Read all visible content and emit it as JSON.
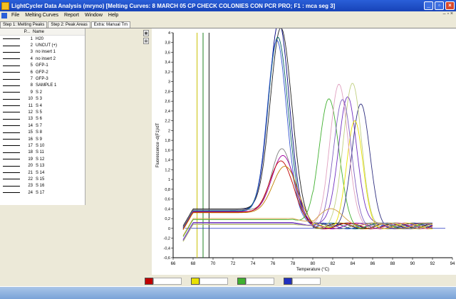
{
  "window": {
    "title": "LightCycler Data Analysis (mryno)    [Melting Curves: 8 MARCH 05 CP CHECK COLONIES CON PCR PRO; F1 : mca seg 3]"
  },
  "menu": {
    "items": [
      "File",
      "Melting Curves",
      "Report",
      "Window",
      "Help"
    ],
    "right_controls": "– ▫ ×"
  },
  "tabs": [
    "Step 1: Melting Peaks",
    "Step 2: Peak Areas",
    "Extra: Manual Tm"
  ],
  "sample_list": {
    "headers": {
      "pos": "P...",
      "name": "Name"
    },
    "rows": [
      {
        "pos": "1",
        "name": "H20",
        "color": "#000000"
      },
      {
        "pos": "2",
        "name": "UNCUT (+)",
        "color": "#000000"
      },
      {
        "pos": "3",
        "name": "no insert 1",
        "color": "#000000"
      },
      {
        "pos": "4",
        "name": "no insert 2",
        "color": "#000000"
      },
      {
        "pos": "5",
        "name": "GFP-1",
        "color": "#000000"
      },
      {
        "pos": "6",
        "name": "GFP-2",
        "color": "#000000"
      },
      {
        "pos": "7",
        "name": "GFP-3",
        "color": "#000000"
      },
      {
        "pos": "8",
        "name": "SAMPLE 1",
        "color": "#000000"
      },
      {
        "pos": "9",
        "name": "S 2",
        "color": "#000000"
      },
      {
        "pos": "10",
        "name": "S 3",
        "color": "#000000"
      },
      {
        "pos": "11",
        "name": "S 4",
        "color": "#000000"
      },
      {
        "pos": "12",
        "name": "S 5",
        "color": "#000000"
      },
      {
        "pos": "13",
        "name": "S 6",
        "color": "#000000"
      },
      {
        "pos": "14",
        "name": "S 7",
        "color": "#000000"
      },
      {
        "pos": "15",
        "name": "S 8",
        "color": "#000000"
      },
      {
        "pos": "16",
        "name": "S 9",
        "color": "#000000"
      },
      {
        "pos": "17",
        "name": "S 10",
        "color": "#000000"
      },
      {
        "pos": "18",
        "name": "S 11",
        "color": "#000000"
      },
      {
        "pos": "19",
        "name": "S 12",
        "color": "#000000"
      },
      {
        "pos": "20",
        "name": "S 13",
        "color": "#000000"
      },
      {
        "pos": "21",
        "name": "S 14",
        "color": "#000000"
      },
      {
        "pos": "22",
        "name": "S 15",
        "color": "#000000"
      },
      {
        "pos": "23",
        "name": "S 16",
        "color": "#000000"
      },
      {
        "pos": "24",
        "name": "S 17",
        "color": "#000000"
      }
    ]
  },
  "color_legend": [
    {
      "color": "#c00000",
      "value": ""
    },
    {
      "color": "#e8e000",
      "value": ""
    },
    {
      "color": "#40b030",
      "value": ""
    },
    {
      "color": "#2030c0",
      "value": ""
    }
  ],
  "chart_data": {
    "type": "line",
    "xlabel": "Temperature (°C)",
    "ylabel": "Fluorescence -d(F1)/dT",
    "xlim": [
      66,
      94
    ],
    "ylim": [
      -0.6,
      4.0
    ],
    "xticks": [
      "66",
      "68",
      "70",
      "72",
      "74",
      "76",
      "78",
      "80",
      "82",
      "84",
      "86",
      "88",
      "90",
      "92",
      "94"
    ],
    "yticks": [
      "-0,6",
      "-0,4",
      "-0,2",
      "0",
      "0,2",
      "0,4",
      "0,6",
      "0,8",
      "1",
      "1,2",
      "1,4",
      "1,6",
      "1,8",
      "2",
      "2,2",
      "2,4",
      "2,6",
      "2,8",
      "3",
      "3,2",
      "3,4",
      "3,6",
      "3,8",
      "4"
    ],
    "vertical_markers": [
      {
        "x": 68.4,
        "color": "#c8c000"
      },
      {
        "x": 69.0,
        "color": "#208020"
      },
      {
        "x": 69.6,
        "color": "#202020"
      }
    ],
    "baseline": {
      "y": 0.0,
      "color": "#2030c0"
    },
    "series": [
      {
        "color": "#000080",
        "peaks": [
          {
            "x": 76.6,
            "h": 3.85,
            "w": 1.0
          }
        ],
        "base": 0.38
      },
      {
        "color": "#202020",
        "peaks": [
          {
            "x": 76.8,
            "h": 3.7,
            "w": 1.05
          }
        ],
        "base": 0.4
      },
      {
        "color": "#006060",
        "peaks": [
          {
            "x": 76.5,
            "h": 3.55,
            "w": 1.0
          }
        ],
        "base": 0.36
      },
      {
        "color": "#3050d0",
        "peaks": [
          {
            "x": 76.4,
            "h": 3.5,
            "w": 0.95
          }
        ],
        "base": 0.35
      },
      {
        "color": "#808080",
        "peaks": [
          {
            "x": 76.9,
            "h": 1.25,
            "w": 1.0
          }
        ],
        "base": 0.38
      },
      {
        "color": "#a000a0",
        "peaks": [
          {
            "x": 77.0,
            "h": 1.15,
            "w": 1.1
          }
        ],
        "base": 0.34
      },
      {
        "color": "#c00000",
        "peaks": [
          {
            "x": 76.8,
            "h": 1.05,
            "w": 1.1
          }
        ],
        "base": 0.33
      },
      {
        "color": "#c08000",
        "peaks": [
          {
            "x": 77.2,
            "h": 0.95,
            "w": 1.2
          }
        ],
        "base": 0.32
      },
      {
        "color": "#40b030",
        "peaks": [
          {
            "x": 81.6,
            "h": 2.55,
            "w": 1.0
          }
        ],
        "base": 0.18
      },
      {
        "color": "#7030c0",
        "peaks": [
          {
            "x": 83.5,
            "h": 2.7,
            "w": 0.9
          }
        ],
        "base": 0.12
      },
      {
        "color": "#303080",
        "peaks": [
          {
            "x": 84.8,
            "h": 2.45,
            "w": 0.9
          }
        ],
        "base": 0.1
      },
      {
        "color": "#e8e000",
        "peaks": [
          {
            "x": 84.2,
            "h": 2.1,
            "w": 0.8
          }
        ],
        "base": 0.08
      },
      {
        "color": "#e0a0c0",
        "peaks": [
          {
            "x": 82.6,
            "h": 2.9,
            "w": 0.9
          }
        ],
        "base": 0.1
      },
      {
        "color": "#c0d080",
        "peaks": [
          {
            "x": 84.0,
            "h": 2.9,
            "w": 0.9
          }
        ],
        "base": 0.08
      },
      {
        "color": "#8060c0",
        "peaks": [
          {
            "x": 83.0,
            "h": 2.55,
            "w": 0.9
          }
        ],
        "base": 0.1
      },
      {
        "color": "#d0a040",
        "peaks": [
          {
            "x": 82.0,
            "h": 0.3,
            "w": 1.4
          }
        ],
        "base": 0.2
      }
    ]
  }
}
